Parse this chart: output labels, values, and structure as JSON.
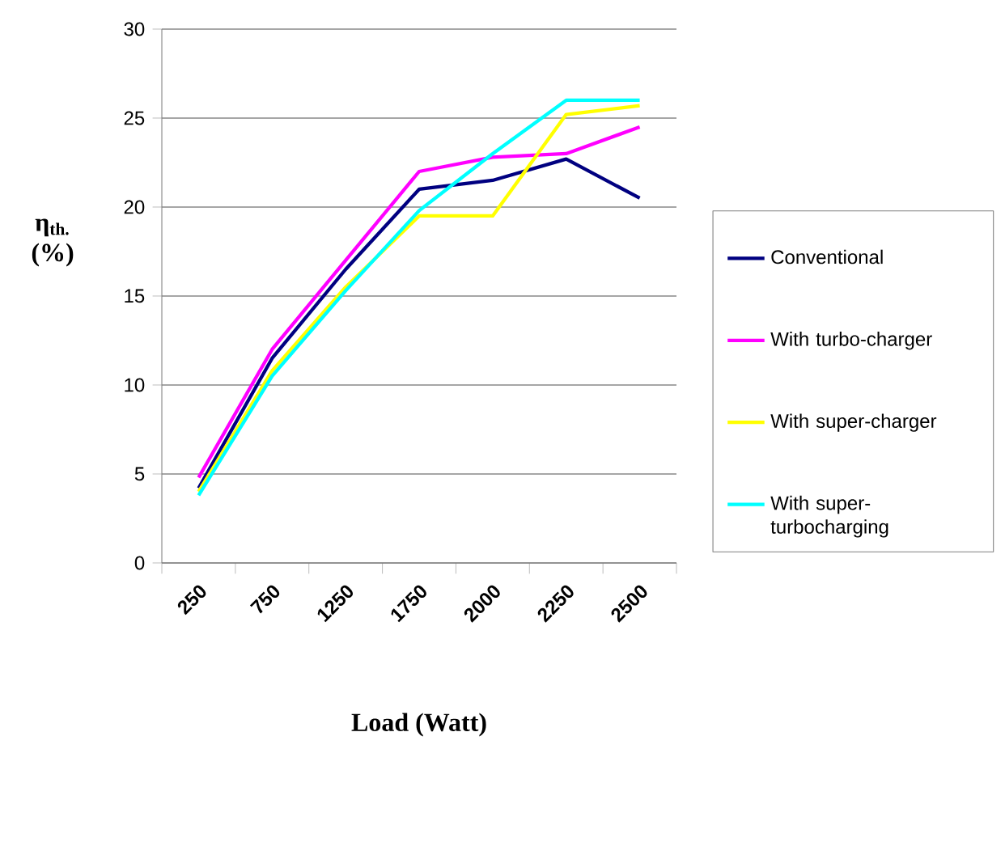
{
  "chart_data": {
    "type": "line",
    "xlabel": "Load (Watt)",
    "ylabel": "η$_{th.}$ (%)",
    "categories": [
      "250",
      "750",
      "1250",
      "1750",
      "2000",
      "2250",
      "2500"
    ],
    "series": [
      {
        "name": "Conventional",
        "color": "#000080",
        "values": [
          4.2,
          11.5,
          16.5,
          21,
          21.5,
          22.7,
          20.5
        ]
      },
      {
        "name": "With turbo-charger",
        "color": "#ff00ff",
        "values": [
          4.8,
          12,
          17,
          22,
          22.8,
          23,
          24.5
        ]
      },
      {
        "name": "With super-charger",
        "color": "#ffff00",
        "values": [
          4,
          10.8,
          15.5,
          19.5,
          19.5,
          25.2,
          25.7
        ]
      },
      {
        "name": "With super-turbocharging",
        "color": "#00ffff",
        "values": [
          3.8,
          10.5,
          15.3,
          19.8,
          23,
          26,
          26
        ]
      }
    ],
    "ylim": [
      0,
      30
    ],
    "yticks": [
      0,
      5,
      10,
      15,
      20,
      25,
      30
    ],
    "grid": "y",
    "legend": "right",
    "marker": "none",
    "line_style": "solid"
  }
}
